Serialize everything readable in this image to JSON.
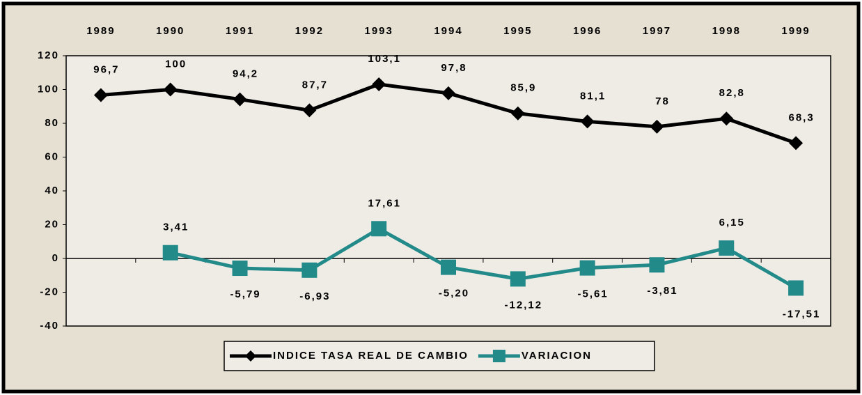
{
  "chart_data": {
    "type": "line",
    "categories": [
      "1989",
      "1990",
      "1991",
      "1992",
      "1993",
      "1994",
      "1995",
      "1996",
      "1997",
      "1998",
      "1999"
    ],
    "series": [
      {
        "name": "INDICE TASA REAL DE CAMBIO",
        "color": "#000000",
        "marker": "diamond",
        "values": [
          96.7,
          100,
          94.2,
          87.7,
          103.1,
          97.8,
          85.9,
          81.1,
          78,
          82.8,
          68.3
        ],
        "value_labels": [
          "96,7",
          "100",
          "94,2",
          "87,7",
          "103,1",
          "97,8",
          "85,9",
          "81,1",
          "78",
          "82,8",
          "68,3"
        ]
      },
      {
        "name": "VARIACION",
        "color": "#238a8a",
        "marker": "square",
        "values": [
          null,
          3.41,
          -5.79,
          -6.93,
          17.61,
          -5.2,
          -12.12,
          -5.61,
          -3.81,
          6.15,
          -17.51
        ],
        "value_labels": [
          null,
          "3,41",
          "-5,79",
          "-6,93",
          "17,61",
          "-5,20",
          "-12,12",
          "-5,61",
          "-3,81",
          "6,15",
          "-17,51"
        ]
      }
    ],
    "ylim": [
      -40,
      120
    ],
    "yticks": [
      -40,
      -20,
      0,
      20,
      40,
      60,
      80,
      100,
      120
    ],
    "grid": false,
    "legend": "bottom",
    "x_axis_position": "top"
  }
}
